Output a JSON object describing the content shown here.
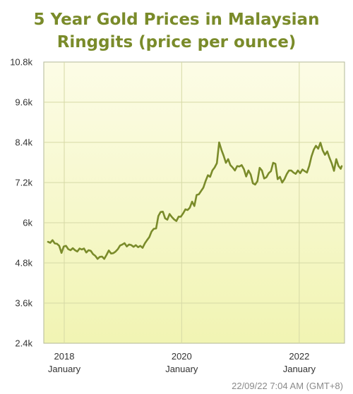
{
  "chart_data": {
    "type": "line",
    "title": "5 Year Gold Prices in Malaysian Ringgits (price per ounce)",
    "title_lines": [
      "5 Year Gold Prices in Malaysian",
      "Ringgits (price per ounce)"
    ],
    "xlabel": "",
    "ylabel": "",
    "ylim": [
      2400,
      10800
    ],
    "y_ticks": [
      {
        "value": 2400,
        "label": "2.4k"
      },
      {
        "value": 3600,
        "label": "3.6k"
      },
      {
        "value": 4800,
        "label": "4.8k"
      },
      {
        "value": 6000,
        "label": "6k"
      },
      {
        "value": 7200,
        "label": "7.2k"
      },
      {
        "value": 8400,
        "label": "8.4k"
      },
      {
        "value": 9600,
        "label": "9.6k"
      },
      {
        "value": 10800,
        "label": "10.8k"
      }
    ],
    "xlim": [
      "2017-09-22",
      "2022-09-22"
    ],
    "x_ticks": [
      {
        "date": "2018-01-01",
        "label": "2018",
        "sublabel": "January"
      },
      {
        "date": "2020-01-01",
        "label": "2020",
        "sublabel": "January"
      },
      {
        "date": "2022-01-01",
        "label": "2022",
        "sublabel": "January"
      }
    ],
    "grid": true,
    "legend": "none",
    "colors": {
      "line": "#7a8b2a",
      "title": "#7a8b2a",
      "background_top": "#fbfbe4",
      "background_bottom": "#f2f5b6",
      "grid": "#d6d9a6",
      "frame": "#b3b89a"
    },
    "series": [
      {
        "x": [
          "2017-09-22",
          "2017-10-06",
          "2017-10-20",
          "2017-11-03",
          "2017-11-17",
          "2017-12-01",
          "2017-12-15",
          "2017-12-29",
          "2018-01-12",
          "2018-01-26",
          "2018-02-09",
          "2018-02-23",
          "2018-03-09",
          "2018-03-23",
          "2018-04-06",
          "2018-04-20",
          "2018-05-04",
          "2018-05-18",
          "2018-06-01",
          "2018-06-15",
          "2018-06-29",
          "2018-07-13",
          "2018-07-27",
          "2018-08-10",
          "2018-08-24",
          "2018-09-07",
          "2018-09-21",
          "2018-10-05",
          "2018-10-19",
          "2018-11-02",
          "2018-11-16",
          "2018-11-30",
          "2018-12-14",
          "2018-12-28",
          "2019-01-11",
          "2019-01-25",
          "2019-02-08",
          "2019-02-22",
          "2019-03-08",
          "2019-03-22",
          "2019-04-05",
          "2019-04-19",
          "2019-05-03",
          "2019-05-17",
          "2019-05-31",
          "2019-06-14",
          "2019-06-28",
          "2019-07-12",
          "2019-07-26",
          "2019-08-09",
          "2019-08-23",
          "2019-09-06",
          "2019-09-20",
          "2019-10-04",
          "2019-10-18",
          "2019-11-01",
          "2019-11-15",
          "2019-11-29",
          "2019-12-13",
          "2019-12-27",
          "2020-01-10",
          "2020-01-24",
          "2020-02-07",
          "2020-02-21",
          "2020-03-06",
          "2020-03-20",
          "2020-04-03",
          "2020-04-17",
          "2020-05-01",
          "2020-05-15",
          "2020-05-29",
          "2020-06-12",
          "2020-06-26",
          "2020-07-10",
          "2020-07-24",
          "2020-08-07",
          "2020-08-21",
          "2020-09-04",
          "2020-09-18",
          "2020-10-02",
          "2020-10-16",
          "2020-10-30",
          "2020-11-13",
          "2020-11-27",
          "2020-12-11",
          "2020-12-25",
          "2021-01-08",
          "2021-01-22",
          "2021-02-05",
          "2021-02-19",
          "2021-03-05",
          "2021-03-19",
          "2021-04-02",
          "2021-04-16",
          "2021-04-30",
          "2021-05-14",
          "2021-05-28",
          "2021-06-11",
          "2021-06-25",
          "2021-07-09",
          "2021-07-23",
          "2021-08-06",
          "2021-08-20",
          "2021-09-03",
          "2021-09-17",
          "2021-10-01",
          "2021-10-15",
          "2021-10-29",
          "2021-11-12",
          "2021-11-26",
          "2021-12-10",
          "2021-12-24",
          "2022-01-07",
          "2022-01-21",
          "2022-02-04",
          "2022-02-18",
          "2022-03-04",
          "2022-03-18",
          "2022-04-01",
          "2022-04-15",
          "2022-04-29",
          "2022-05-13",
          "2022-05-27",
          "2022-06-10",
          "2022-06-24",
          "2022-07-08",
          "2022-07-22",
          "2022-08-05",
          "2022-08-19",
          "2022-09-02",
          "2022-09-16",
          "2022-09-22"
        ],
        "values": [
          5430,
          5400,
          5480,
          5380,
          5370,
          5310,
          5100,
          5290,
          5310,
          5210,
          5180,
          5240,
          5180,
          5140,
          5230,
          5200,
          5230,
          5110,
          5180,
          5160,
          5060,
          5010,
          4920,
          4980,
          4990,
          4920,
          5040,
          5170,
          5080,
          5090,
          5140,
          5210,
          5320,
          5350,
          5390,
          5290,
          5350,
          5330,
          5280,
          5330,
          5270,
          5310,
          5250,
          5380,
          5480,
          5570,
          5740,
          5820,
          5830,
          6200,
          6320,
          6330,
          6130,
          6090,
          6260,
          6170,
          6100,
          6050,
          6180,
          6180,
          6280,
          6400,
          6380,
          6450,
          6630,
          6500,
          6830,
          6850,
          6950,
          7050,
          7250,
          7420,
          7370,
          7560,
          7650,
          7780,
          8400,
          8180,
          8000,
          7790,
          7900,
          7720,
          7650,
          7560,
          7690,
          7680,
          7720,
          7600,
          7380,
          7560,
          7440,
          7180,
          7140,
          7240,
          7640,
          7560,
          7320,
          7360,
          7480,
          7540,
          7790,
          7760,
          7300,
          7370,
          7200,
          7300,
          7450,
          7560,
          7560,
          7500,
          7460,
          7560,
          7480,
          7590,
          7540,
          7500,
          7700,
          7980,
          8180,
          8300,
          8210,
          8390,
          8160,
          8030,
          8130,
          7940,
          7770,
          7550,
          7900,
          7700,
          7610,
          7690
        ]
      }
    ]
  },
  "timestamp": "22/09/22 7:04 AM (GMT+8)"
}
